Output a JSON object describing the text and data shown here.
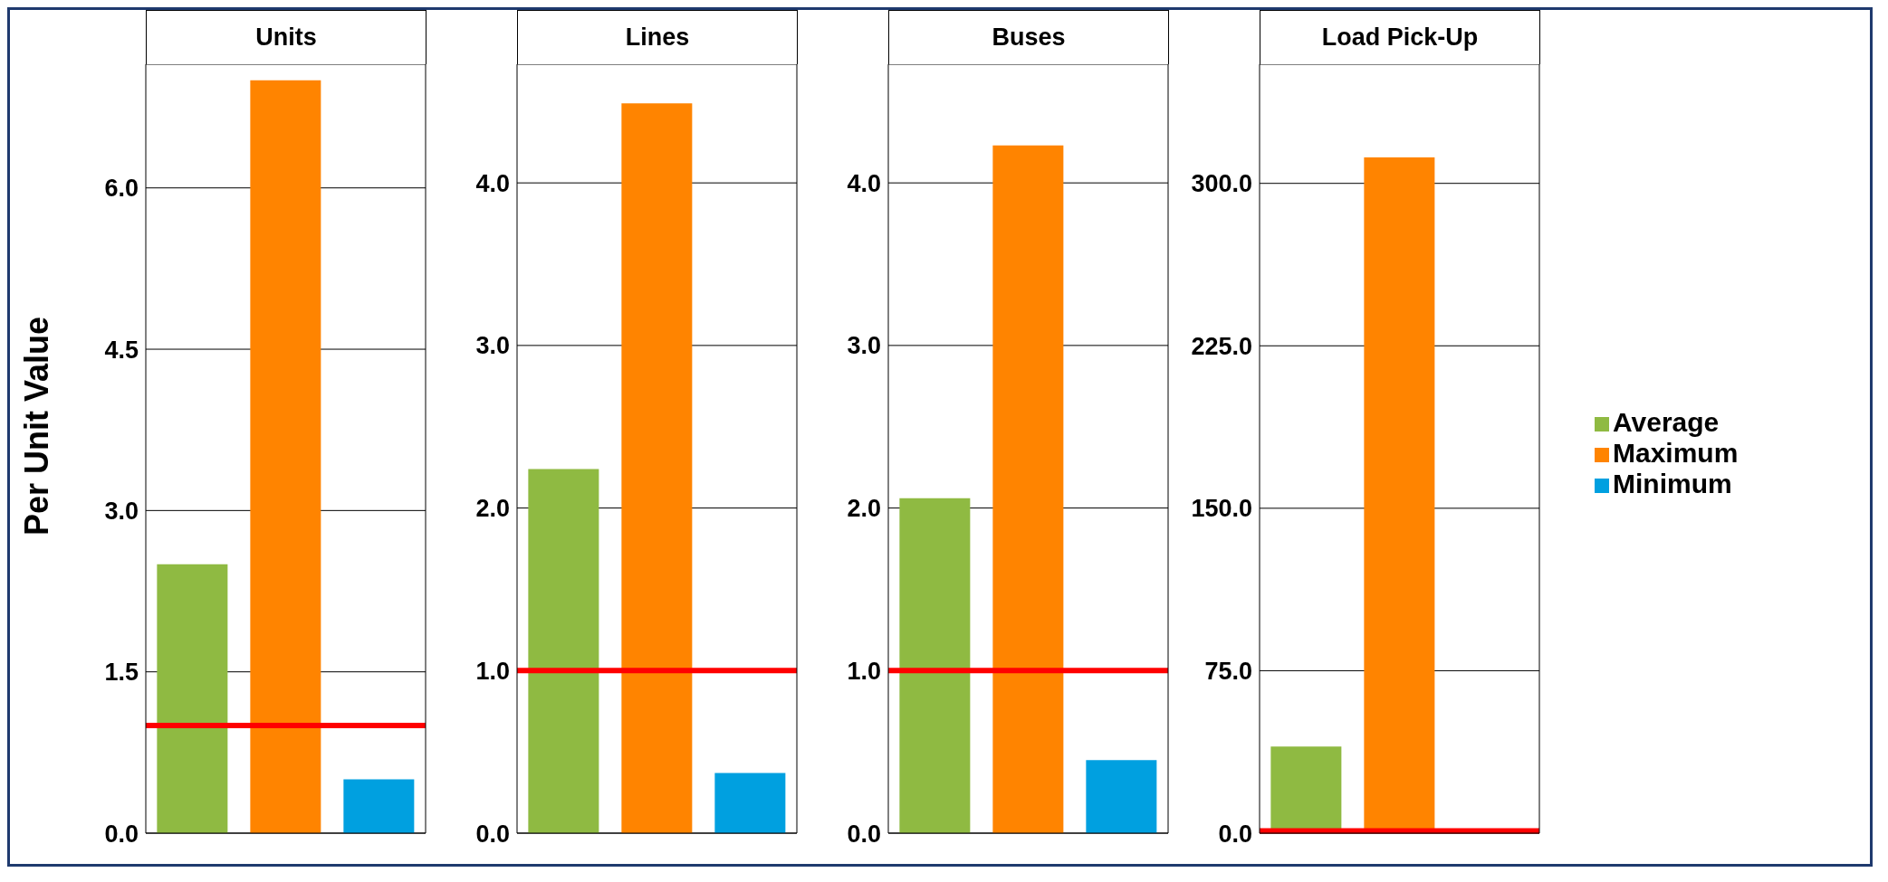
{
  "chart_data": [
    {
      "type": "bar",
      "title": "Units",
      "ylabel": "Per Unit Value",
      "categories": [
        null,
        null,
        null
      ],
      "stacked": true,
      "grid": "y",
      "series": [
        {
          "color": "#8fba42",
          "values": [
            2.5,
            null,
            null
          ]
        },
        {
          "color": "#ff8400",
          "values": [
            null,
            7.0,
            null
          ]
        },
        {
          "color": "#00a0e0",
          "values": [
            null,
            null,
            0.5
          ]
        }
      ],
      "ylim": [
        0,
        7.15
      ],
      "yticks": [
        {
          "value": 0,
          "label": "0.0"
        },
        {
          "value": 1.5,
          "label": "1.5"
        },
        {
          "value": 3,
          "label": "3.0"
        },
        {
          "value": 4.5,
          "label": "4.5"
        },
        {
          "value": 6,
          "label": "6.0"
        }
      ],
      "ref_lines": [
        {
          "axis": "y",
          "value": 1,
          "color": "#ff0000"
        }
      ]
    },
    {
      "type": "bar",
      "title": "Lines",
      "categories": [
        null,
        null,
        null
      ],
      "stacked": true,
      "grid": "y",
      "series": [
        {
          "color": "#8fba42",
          "values": [
            2.24,
            null,
            null
          ]
        },
        {
          "color": "#ff8400",
          "values": [
            null,
            4.49,
            null
          ]
        },
        {
          "color": "#00a0e0",
          "values": [
            null,
            null,
            0.37
          ]
        }
      ],
      "ylim": [
        0,
        4.73
      ],
      "yticks": [
        {
          "value": 0,
          "label": "0.0"
        },
        {
          "value": 1,
          "label": "1.0"
        },
        {
          "value": 2,
          "label": "2.0"
        },
        {
          "value": 3,
          "label": "3.0"
        },
        {
          "value": 4,
          "label": "4.0"
        }
      ],
      "ref_lines": [
        {
          "axis": "y",
          "value": 1,
          "color": "#ff0000"
        }
      ]
    },
    {
      "type": "bar",
      "title": "Buses",
      "categories": [
        null,
        null,
        null
      ],
      "stacked": true,
      "grid": "y",
      "series": [
        {
          "color": "#8fba42",
          "values": [
            2.06,
            null,
            null
          ]
        },
        {
          "color": "#ff8400",
          "values": [
            null,
            4.23,
            null
          ]
        },
        {
          "color": "#00a0e0",
          "values": [
            null,
            null,
            0.45
          ]
        }
      ],
      "ylim": [
        0,
        4.73
      ],
      "yticks": [
        {
          "value": 0,
          "label": "0.0"
        },
        {
          "value": 1,
          "label": "1.0"
        },
        {
          "value": 2,
          "label": "2.0"
        },
        {
          "value": 3,
          "label": "3.0"
        },
        {
          "value": 4,
          "label": "4.0"
        }
      ],
      "ref_lines": [
        {
          "axis": "y",
          "value": 1,
          "color": "#ff0000"
        }
      ]
    },
    {
      "type": "bar",
      "title": "Load Pick-Up",
      "categories": [
        null,
        null,
        null
      ],
      "stacked": true,
      "grid": "y",
      "legend": "right",
      "series": [
        {
          "name": "Average",
          "color": "#8fba42",
          "values": [
            40,
            null,
            null
          ]
        },
        {
          "name": "Maximum",
          "color": "#ff8400",
          "values": [
            null,
            312,
            null
          ]
        },
        {
          "name": "Minimum",
          "color": "#00a0e0",
          "values": [
            null,
            null,
            null
          ]
        }
      ],
      "ylim": [
        0,
        355
      ],
      "yticks": [
        {
          "value": 0,
          "label": "0.0"
        },
        {
          "value": 75,
          "label": "75.0"
        },
        {
          "value": 150,
          "label": "150.0"
        },
        {
          "value": 225,
          "label": "225.0"
        },
        {
          "value": 300,
          "label": "300.0"
        }
      ],
      "ref_lines": [
        {
          "axis": "y",
          "value": 1,
          "color": "#ff0000"
        }
      ]
    }
  ]
}
